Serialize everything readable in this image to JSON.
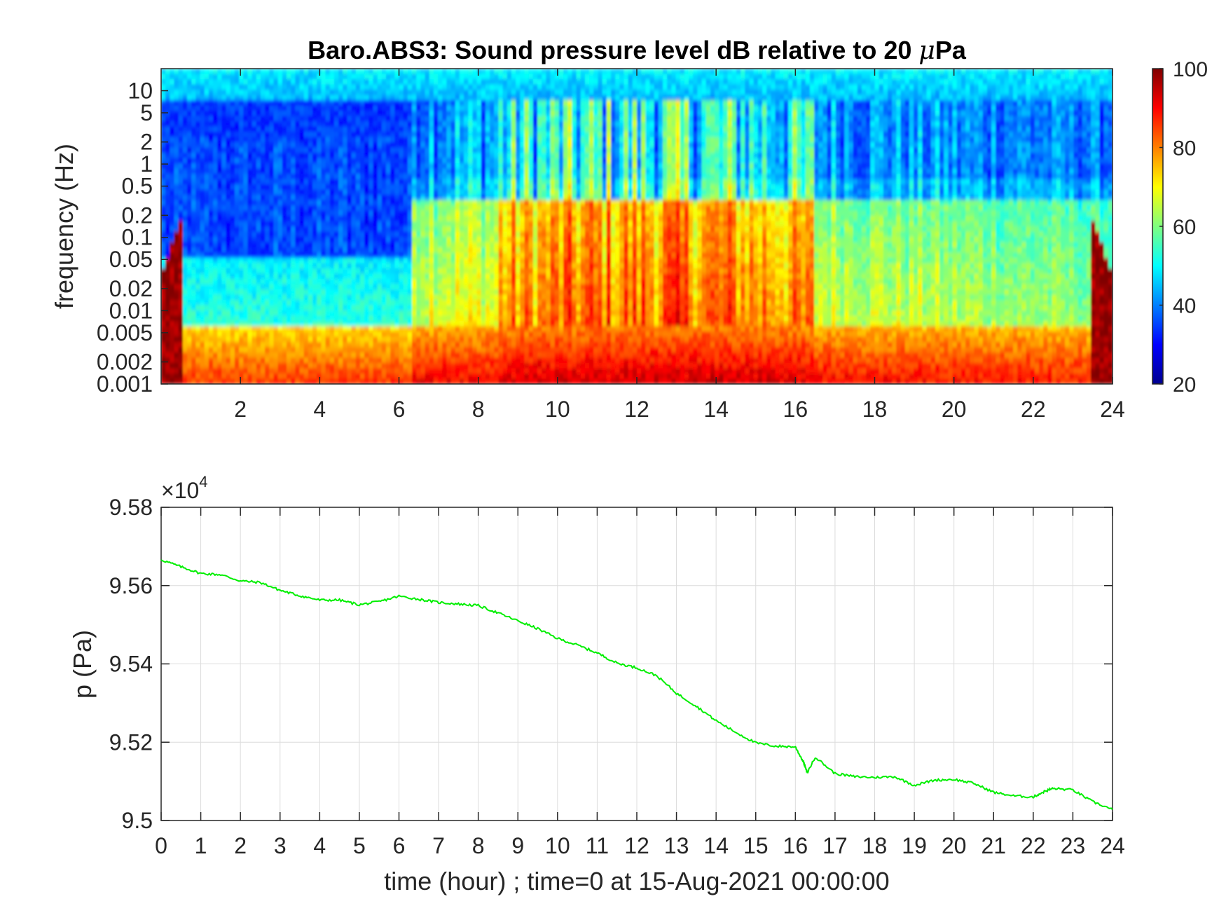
{
  "chart_data": [
    {
      "type": "heatmap",
      "title_parts": [
        "Baro.ABS3: Sound pressure level dB relative to 20 ",
        "μ",
        "Pa"
      ],
      "ylabel": "frequency (Hz)",
      "x_ticks": [
        "2",
        "4",
        "6",
        "8",
        "10",
        "12",
        "14",
        "16",
        "18",
        "20",
        "22",
        "24"
      ],
      "x_tick_values": [
        2,
        4,
        6,
        8,
        10,
        12,
        14,
        16,
        18,
        20,
        22,
        24
      ],
      "y_ticks": [
        "10",
        "5",
        "2",
        "1",
        "0.5",
        "0.2",
        "0.1",
        "0.05",
        "0.02",
        "0.01",
        "0.005",
        "0.002",
        "0.001"
      ],
      "y_tick_values": [
        10,
        5,
        2,
        1,
        0.5,
        0.2,
        0.1,
        0.05,
        0.02,
        0.01,
        0.005,
        0.002,
        0.001
      ],
      "xlim": [
        0,
        24
      ],
      "ylim": [
        0.001,
        20
      ],
      "yscale": "log",
      "colormap": "jet",
      "clim": [
        20,
        100
      ],
      "colorbar_ticks": [
        "100",
        "80",
        "60",
        "40",
        "20"
      ],
      "colorbar_tick_values": [
        100,
        80,
        60,
        40,
        20
      ]
    },
    {
      "type": "line",
      "xlabel": "time (hour) ; time=0 at 15-Aug-2021 00:00:00",
      "ylabel": "p (Pa)",
      "exponent_label": "×10",
      "exponent_power": "4",
      "x_ticks": [
        "0",
        "1",
        "2",
        "3",
        "4",
        "5",
        "6",
        "7",
        "8",
        "9",
        "10",
        "11",
        "12",
        "13",
        "14",
        "15",
        "16",
        "17",
        "18",
        "19",
        "20",
        "21",
        "22",
        "23",
        "24"
      ],
      "y_ticks": [
        "9.58",
        "9.56",
        "9.54",
        "9.52",
        "9.5"
      ],
      "y_tick_values": [
        9.58,
        9.56,
        9.54,
        9.52,
        9.5
      ],
      "xlim": [
        0,
        24
      ],
      "ylim": [
        9.5,
        9.58
      ],
      "grid": true,
      "line_color": "#00ee00",
      "series": [
        {
          "x": [
            0,
            0.5,
            1,
            1.5,
            2,
            2.5,
            3,
            3.5,
            4,
            4.5,
            5,
            5.5,
            6,
            6.5,
            7,
            7.5,
            8,
            8.5,
            9,
            9.5,
            10,
            10.5,
            11,
            11.5,
            12,
            12.5,
            13,
            13.5,
            14,
            14.5,
            15,
            15.5,
            16,
            16.2,
            16.3,
            16.5,
            17,
            17.5,
            18,
            18.5,
            19,
            19.5,
            20,
            20.5,
            21,
            21.5,
            22,
            22.3,
            22.5,
            23,
            23.5,
            24
          ],
          "y": [
            9.5666,
            9.5648,
            9.5631,
            9.5628,
            9.5612,
            9.5608,
            9.5588,
            9.5574,
            9.5563,
            9.5563,
            9.5551,
            9.5559,
            9.5573,
            9.5565,
            9.5557,
            9.5553,
            9.5549,
            9.553,
            9.551,
            9.549,
            9.5465,
            9.5448,
            9.5428,
            9.5402,
            9.539,
            9.537,
            9.5325,
            9.5292,
            9.5255,
            9.5225,
            9.5198,
            9.519,
            9.5188,
            9.515,
            9.5122,
            9.5162,
            9.512,
            9.5112,
            9.511,
            9.5112,
            9.509,
            9.5103,
            9.5105,
            9.5095,
            9.5072,
            9.5063,
            9.506,
            9.5075,
            9.5082,
            9.5078,
            9.5048,
            9.5028
          ]
        }
      ]
    }
  ]
}
